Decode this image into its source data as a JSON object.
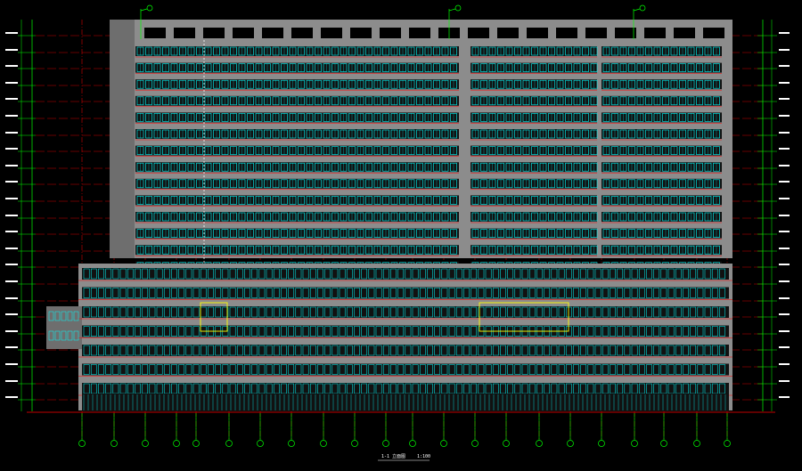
{
  "drawing": {
    "title": "1-1 立面图",
    "scale_note": "1:100",
    "colors": {
      "background": "#000000",
      "wall_gray": "#8c8c8c",
      "window_cyan": "#00ffff",
      "grid_red": "#ff0000",
      "dim_green": "#00ff00",
      "highlight_yellow": "#ffff00",
      "white": "#ffffff"
    },
    "floors": {
      "tower_count": 14,
      "podium_count": 7
    },
    "grid_axis_count": 22,
    "top_markers": [
      "A",
      "B",
      "C"
    ]
  }
}
